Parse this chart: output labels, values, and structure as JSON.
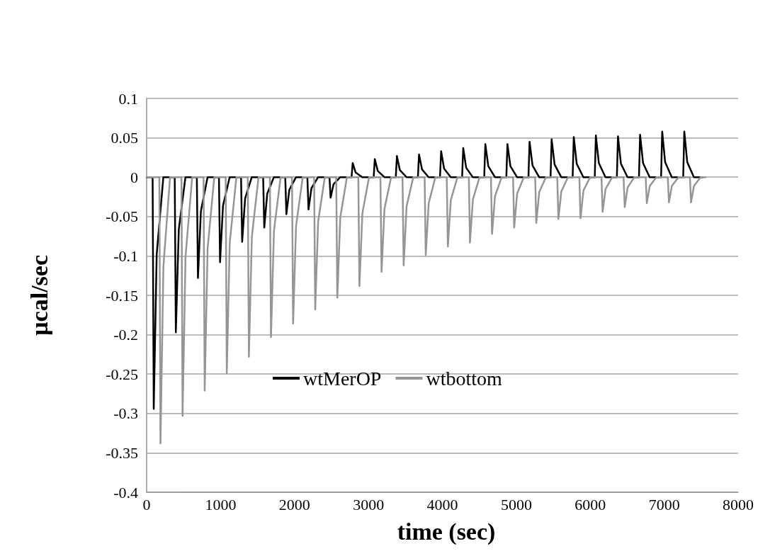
{
  "chart_data": {
    "type": "line",
    "xlabel": "time (sec)",
    "ylabel": "µcal/sec",
    "xlim": [
      0,
      8000
    ],
    "xticks": [
      0,
      1000,
      2000,
      3000,
      4000,
      5000,
      6000,
      7000,
      8000
    ],
    "ylim": [
      -0.4,
      0.1
    ],
    "yticks": [
      -0.4,
      -0.35,
      -0.3,
      -0.25,
      -0.2,
      -0.15,
      -0.1,
      -0.05,
      0,
      0.05,
      0.1
    ],
    "grid": "y",
    "legend": "center",
    "marker": "none",
    "line_style": "solid",
    "series": [
      {
        "name": "wtMerOP",
        "color": "#000000",
        "x": [
          0,
          81,
          96,
          136,
          226,
          380,
          395,
          435,
          525,
          679,
          694,
          734,
          824,
          978,
          993,
          1033,
          1123,
          1277,
          1292,
          1332,
          1422,
          1576,
          1591,
          1631,
          1721,
          1875,
          1890,
          1930,
          2020,
          2174,
          2189,
          2229,
          2319,
          2473,
          2488,
          2528,
          2618,
          2772,
          2787,
          2827,
          2917,
          3071,
          3086,
          3126,
          3216,
          3370,
          3385,
          3425,
          3515,
          3669,
          3684,
          3724,
          3814,
          3968,
          3983,
          4023,
          4113,
          4267,
          4282,
          4322,
          4412,
          4566,
          4581,
          4621,
          4711,
          4865,
          4880,
          4920,
          5010,
          5164,
          5179,
          5219,
          5309,
          5463,
          5478,
          5518,
          5608,
          5762,
          5777,
          5817,
          5907,
          6061,
          6076,
          6116,
          6206,
          6360,
          6375,
          6415,
          6505,
          6659,
          6674,
          6714,
          6804,
          6958,
          6973,
          7013,
          7103,
          7257,
          7272,
          7312,
          7402,
          7520
        ],
        "values": [
          0,
          0,
          -0.294,
          -0.098,
          0,
          0,
          -0.197,
          -0.066,
          0,
          0,
          -0.128,
          -0.043,
          0,
          0,
          -0.108,
          -0.036,
          0,
          0,
          -0.082,
          -0.027,
          0,
          0,
          -0.064,
          -0.021,
          0,
          0,
          -0.047,
          -0.016,
          0,
          0,
          -0.041,
          -0.014,
          0,
          0,
          -0.026,
          -0.009,
          0,
          0,
          0.018,
          0.006,
          0,
          0,
          0.023,
          0.008,
          0,
          0,
          0.027,
          0.009,
          0,
          0,
          0.029,
          0.01,
          0,
          0,
          0.033,
          0.011,
          0,
          0,
          0.037,
          0.012,
          0,
          0,
          0.042,
          0.014,
          0,
          0,
          0.042,
          0.014,
          0,
          0,
          0.045,
          0.015,
          0,
          0,
          0.048,
          0.016,
          0,
          0,
          0.051,
          0.017,
          0,
          0,
          0.053,
          0.018,
          0,
          0,
          0.052,
          0.017,
          0,
          0,
          0.054,
          0.018,
          0,
          0,
          0.058,
          0.019,
          0,
          0,
          0.058,
          0.019,
          0,
          0
        ]
      },
      {
        "name": "wtbottom",
        "color": "#959595",
        "x": [
          0,
          172,
          187,
          227,
          317,
          471,
          486,
          526,
          616,
          770,
          785,
          825,
          915,
          1069,
          1084,
          1124,
          1214,
          1368,
          1383,
          1423,
          1513,
          1667,
          1682,
          1722,
          1812,
          1966,
          1981,
          2021,
          2111,
          2265,
          2280,
          2320,
          2410,
          2564,
          2579,
          2619,
          2709,
          2863,
          2878,
          2918,
          3008,
          3162,
          3177,
          3217,
          3307,
          3461,
          3476,
          3516,
          3606,
          3760,
          3775,
          3815,
          3905,
          4059,
          4074,
          4114,
          4204,
          4358,
          4373,
          4413,
          4503,
          4657,
          4672,
          4712,
          4802,
          4956,
          4971,
          5011,
          5101,
          5255,
          5270,
          5310,
          5400,
          5554,
          5569,
          5609,
          5699,
          5853,
          5868,
          5908,
          5998,
          6152,
          6167,
          6207,
          6297,
          6451,
          6466,
          6506,
          6596,
          6750,
          6765,
          6805,
          6895,
          7049,
          7064,
          7104,
          7194,
          7348,
          7363,
          7403,
          7493,
          7560
        ],
        "values": [
          0,
          0,
          -0.338,
          -0.113,
          0,
          0,
          -0.303,
          -0.101,
          0,
          0,
          -0.271,
          -0.09,
          0,
          0,
          -0.249,
          -0.083,
          0,
          0,
          -0.228,
          -0.076,
          0,
          0,
          -0.203,
          -0.068,
          0,
          0,
          -0.186,
          -0.062,
          0,
          0,
          -0.168,
          -0.056,
          0,
          0,
          -0.153,
          -0.051,
          0,
          0,
          -0.138,
          -0.046,
          0,
          0,
          -0.12,
          -0.04,
          0,
          0,
          -0.112,
          -0.037,
          0,
          0,
          -0.099,
          -0.033,
          0,
          0,
          -0.088,
          -0.029,
          0,
          0,
          -0.083,
          -0.028,
          0,
          0,
          -0.072,
          -0.024,
          0,
          0,
          -0.064,
          -0.021,
          0,
          0,
          -0.058,
          -0.019,
          0,
          0,
          -0.053,
          -0.018,
          0,
          0,
          -0.052,
          -0.017,
          0,
          0,
          -0.044,
          -0.015,
          0,
          0,
          -0.038,
          -0.013,
          0,
          0,
          -0.033,
          -0.011,
          0,
          0,
          -0.032,
          -0.011,
          0,
          0,
          -0.032,
          -0.011,
          0,
          0
        ]
      }
    ]
  }
}
